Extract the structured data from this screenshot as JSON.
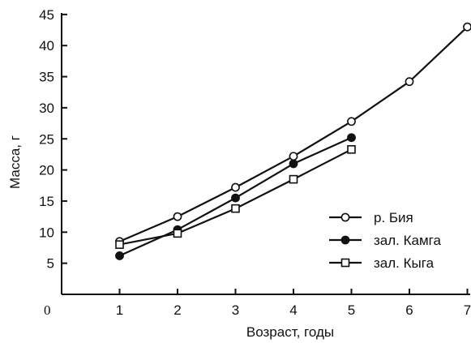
{
  "chart_data": {
    "type": "line",
    "xlabel": "Возраст, годы",
    "ylabel": "Масса, г",
    "origin_label": "0",
    "xlim": [
      0,
      7
    ],
    "ylim": [
      0,
      45
    ],
    "x_ticks": [
      1,
      2,
      3,
      4,
      5,
      6,
      7
    ],
    "y_ticks": [
      5,
      10,
      15,
      20,
      25,
      30,
      35,
      40,
      45
    ],
    "grid": false,
    "legend_position": "right",
    "series": [
      {
        "name": "р. Бия",
        "marker": "open-circle",
        "x": [
          1,
          2,
          3,
          4,
          5,
          6,
          7
        ],
        "y": [
          8.5,
          12.5,
          17.2,
          22.2,
          27.8,
          34.2,
          43.0
        ]
      },
      {
        "name": "зал. Камга",
        "marker": "filled-circle",
        "x": [
          1,
          2,
          3,
          4,
          5
        ],
        "y": [
          6.2,
          10.4,
          15.5,
          21.0,
          25.2
        ]
      },
      {
        "name": "зал. Кыга",
        "marker": "open-square",
        "x": [
          1,
          2,
          3,
          4,
          5
        ],
        "y": [
          8.0,
          9.8,
          13.8,
          18.5,
          23.3
        ]
      }
    ]
  }
}
